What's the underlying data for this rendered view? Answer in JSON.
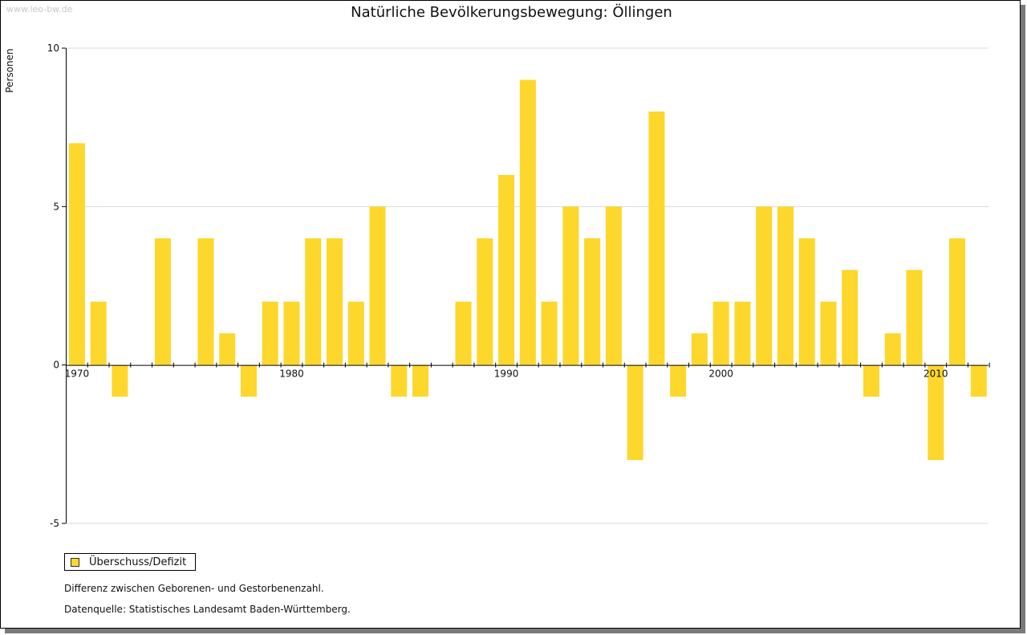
{
  "watermark": "www.leo-bw.de",
  "bar_color": "#fdd72b",
  "legend_label": "Überschuss/Defizit",
  "note": "Differenz zwischen Geborenen- und Gestorbenenzahl.",
  "source": "Datenquelle: Statistisches Landesamt Baden-Württemberg.",
  "chart_data": {
    "type": "bar",
    "title": "Natürliche Bevölkerungsbewegung: Öllingen",
    "xlabel": "",
    "ylabel": "Personen",
    "ylim": [
      -5,
      10
    ],
    "yticks": [
      10,
      5,
      0,
      -5
    ],
    "xtick_labels": [
      "1970",
      "1980",
      "1990",
      "2000",
      "2010"
    ],
    "grid": true,
    "legend_position": "bottom-left",
    "series": [
      {
        "name": "Überschuss/Defizit",
        "categories": [
          1970,
          1971,
          1972,
          1973,
          1974,
          1975,
          1976,
          1977,
          1978,
          1979,
          1980,
          1981,
          1982,
          1983,
          1984,
          1985,
          1986,
          1987,
          1988,
          1989,
          1990,
          1991,
          1992,
          1993,
          1994,
          1995,
          1996,
          1997,
          1998,
          1999,
          2000,
          2001,
          2002,
          2003,
          2004,
          2005,
          2006,
          2007,
          2008,
          2009,
          2010,
          2011,
          2012
        ],
        "values": [
          7,
          2,
          -1,
          0,
          4,
          0,
          4,
          1,
          -1,
          2,
          2,
          4,
          4,
          2,
          5,
          -1,
          -1,
          0,
          2,
          4,
          6,
          9,
          2,
          5,
          4,
          5,
          -3,
          8,
          -1,
          1,
          2,
          2,
          5,
          5,
          4,
          2,
          3,
          -1,
          1,
          3,
          -3,
          4,
          -1
        ]
      }
    ]
  }
}
